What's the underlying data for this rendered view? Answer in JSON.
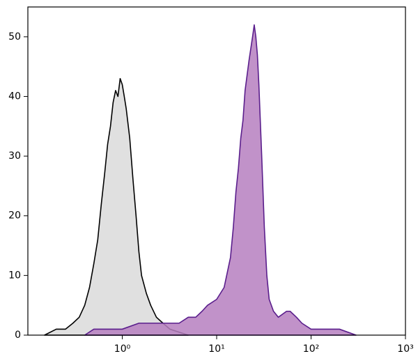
{
  "chart_data": {
    "type": "histogram-area",
    "log_x": true,
    "xlim": [
      0.1,
      1000
    ],
    "ylim": [
      0,
      55
    ],
    "xticks": [
      {
        "value": 1,
        "label": "10⁰"
      },
      {
        "value": 10,
        "label": "10¹"
      },
      {
        "value": 100,
        "label": "10²"
      },
      {
        "value": 1000,
        "label": "10³"
      }
    ],
    "yticks": [
      0,
      10,
      20,
      30,
      40,
      50
    ],
    "series": [
      {
        "color": "#000000",
        "fill": "#e0e0e0",
        "x": [
          0.15,
          0.2,
          0.25,
          0.3,
          0.35,
          0.4,
          0.45,
          0.5,
          0.55,
          0.6,
          0.65,
          0.7,
          0.75,
          0.8,
          0.85,
          0.9,
          0.95,
          1.0,
          1.05,
          1.1,
          1.2,
          1.3,
          1.4,
          1.5,
          1.6,
          1.8,
          2.0,
          2.3,
          2.7,
          3.2,
          4,
          5
        ],
        "values": [
          0,
          1,
          1,
          2,
          3,
          5,
          8,
          12,
          16,
          22,
          27,
          32,
          35,
          39,
          41,
          40,
          43,
          42,
          40,
          38,
          33,
          26,
          20,
          14,
          10,
          7,
          5,
          3,
          2,
          1,
          0.5,
          0
        ]
      },
      {
        "color": "#5a1e8c",
        "fill": "#b67fbf",
        "x": [
          0.4,
          0.5,
          0.7,
          1,
          1.5,
          2,
          3,
          4,
          5,
          6,
          7,
          8,
          10,
          12,
          14,
          15,
          16,
          17,
          18,
          19,
          20,
          22,
          24,
          25,
          26,
          27,
          28,
          30,
          32,
          34,
          36,
          40,
          45,
          55,
          60,
          70,
          80,
          100,
          150,
          200,
          300
        ],
        "values": [
          0,
          1,
          1,
          1,
          2,
          2,
          2,
          2,
          3,
          3,
          4,
          5,
          6,
          8,
          13,
          18,
          24,
          28,
          33,
          36,
          41,
          46,
          50,
          52,
          50,
          47,
          42,
          30,
          18,
          10,
          6,
          4,
          3,
          4,
          4,
          3,
          2,
          1,
          1,
          1,
          0
        ]
      }
    ]
  }
}
